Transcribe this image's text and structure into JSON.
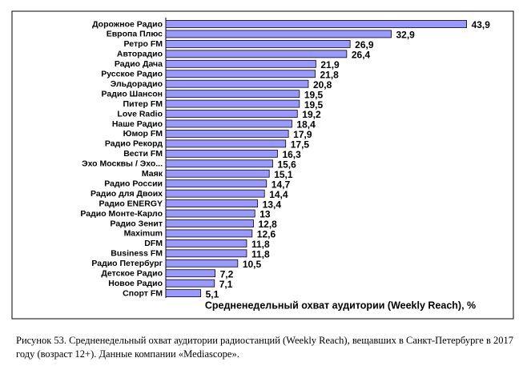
{
  "chart_data": {
    "type": "barh",
    "categories": [
      "Дорожное Радио",
      "Европа Плюс",
      "Ретро FM",
      "Авторадио",
      "Радио Дача",
      "Русское Радио",
      "Эльдорадио",
      "Радио Шансон",
      "Питер FM",
      "Love Radio",
      "Наше Радио",
      "Юмор FM",
      "Радио Рекорд",
      "Вести FM",
      "Эхо Москвы / Эхо...",
      "Маяк",
      "Радио России",
      "Радио для Двоих",
      "Радио ENERGY",
      "Радио Монте-Карло",
      "Радио Зенит",
      "Maximum",
      "DFM",
      "Business FM",
      "Радио Петербург",
      "Детское Радио",
      "Новое Радио",
      "Спорт FM"
    ],
    "values": [
      43.9,
      32.9,
      26.9,
      26.4,
      21.9,
      21.8,
      20.8,
      19.5,
      19.5,
      19.2,
      18.4,
      17.9,
      17.5,
      16.3,
      15.6,
      15.1,
      14.7,
      14.4,
      13.4,
      13,
      12.8,
      12.6,
      11.8,
      11.8,
      10.5,
      7.2,
      7.1,
      5.1
    ],
    "value_labels": [
      "43,9",
      "32,9",
      "26,9",
      "26,4",
      "21,9",
      "21,8",
      "20,8",
      "19,5",
      "19,5",
      "19,2",
      "18,4",
      "17,9",
      "17,5",
      "16,3",
      "15,6",
      "15,1",
      "14,7",
      "14,4",
      "13,4",
      "13",
      "12,8",
      "12,6",
      "11,8",
      "11,8",
      "10,5",
      "7,2",
      "7,1",
      "5,1"
    ],
    "color": "#9999ff",
    "xlim": [
      0,
      45
    ],
    "x_label": "Средненедельный охват аудитории (Weekly Reach), %"
  },
  "caption": "Рисунок 53. Средненедельный  охват аудитории радиостанций (Weekly Reach), вещавших в Санкт-Петербурге в 2017 году (возраст 12+). Данные компании «Mediascope»."
}
